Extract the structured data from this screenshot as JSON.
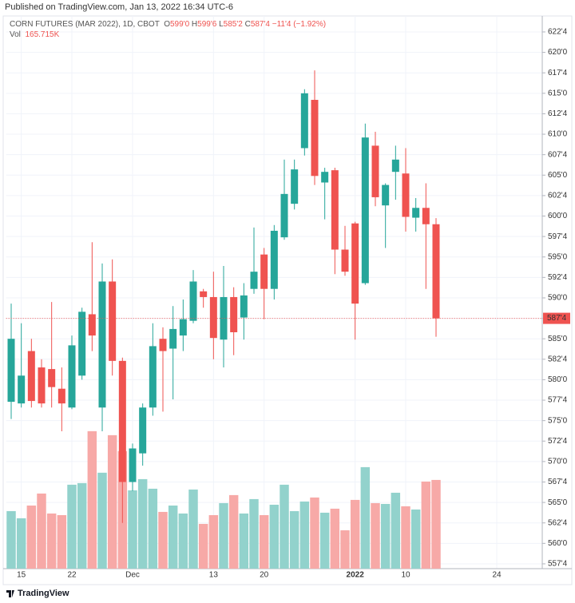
{
  "publisher": "Published on TradingView.com, Jan 13, 2022 16:34 UTC-6",
  "footer": "TradingView",
  "chart_data": {
    "type": "candlestick",
    "title": "CORN FUTURES (MAR 2022), 1D, CBOT",
    "legend": {
      "o": "O",
      "o_value": "599'0",
      "h": "H",
      "h_value": "599'6",
      "l": "L",
      "l_value": "585'2",
      "c": "C",
      "c_value": "587'4",
      "change": "−11'4 (−1.92%)",
      "vol": "Vol",
      "vol_value": "165.715K"
    },
    "up_color": "#26a69a",
    "down_color": "#ef5350",
    "up_volume_color": "#92d2cc",
    "down_volume_color": "#f7a9a7",
    "categories": [
      null,
      "15",
      null,
      null,
      null,
      null,
      "22",
      null,
      null,
      null,
      null,
      null,
      "Dec",
      null,
      null,
      null,
      null,
      null,
      null,
      null,
      "13",
      null,
      null,
      null,
      null,
      "20",
      null,
      null,
      null,
      null,
      null,
      null,
      null,
      null,
      "2022",
      null,
      null,
      null,
      null,
      "10",
      null,
      null,
      null,
      null,
      null,
      null,
      null,
      null,
      "24",
      null,
      null,
      null,
      null
    ],
    "open": [
      577.3,
      577.1,
      583.5,
      581.5,
      581.3,
      578.9,
      576.6,
      580.5,
      588.0,
      576.6,
      592.0,
      582.3,
      567.5,
      571.0,
      576.6,
      585.0,
      583.8,
      585.4,
      587.2,
      590.8,
      590.1,
      584.9,
      590.1,
      587.6,
      591.1,
      595.3,
      591.1,
      597.4,
      601.5,
      608.3,
      614.2,
      604.1,
      605.6,
      595.9,
      599.1,
      591.8,
      608.6,
      601.3,
      605.4,
      605.2,
      599.8,
      601.0,
      599.0,
      null,
      null,
      null,
      null,
      null,
      null,
      null,
      null,
      null,
      null
    ],
    "high": [
      589.3,
      586.9,
      585.0,
      582.5,
      589.5,
      581.5,
      585.4,
      588.8,
      596.8,
      594.2,
      594.7,
      582.7,
      572.2,
      577.1,
      586.9,
      586.4,
      589.0,
      589.8,
      593.4,
      591.1,
      593.2,
      593.9,
      591.3,
      591.8,
      598.6,
      596.1,
      598.9,
      606.9,
      606.9,
      615.5,
      617.8,
      605.9,
      605.9,
      598.8,
      599.3,
      611.3,
      610.3,
      604.0,
      608.6,
      608.3,
      602.2,
      604.0,
      599.75,
      null,
      null,
      null,
      null,
      null,
      null,
      null,
      null,
      null,
      null
    ],
    "low": [
      575.2,
      576.6,
      576.6,
      576.6,
      576.6,
      573.7,
      576.4,
      580.0,
      583.5,
      573.7,
      580.5,
      562.5,
      566.4,
      569.5,
      575.6,
      576.1,
      577.6,
      583.5,
      586.9,
      588.8,
      582.5,
      581.5,
      583.0,
      584.9,
      590.5,
      587.4,
      589.8,
      597.1,
      600.8,
      607.4,
      603.8,
      599.6,
      592.9,
      592.7,
      584.9,
      591.6,
      601.2,
      596.1,
      602.0,
      598.1,
      598.1,
      591.1,
      585.25,
      null,
      null,
      null,
      null,
      null,
      null,
      null,
      null,
      null,
      null
    ],
    "close": [
      585.0,
      580.5,
      577.4,
      577.1,
      579.1,
      577.1,
      584.2,
      588.3,
      585.4,
      592.0,
      582.3,
      567.5,
      571.6,
      576.6,
      584.1,
      583.5,
      586.2,
      587.4,
      592.0,
      590.1,
      585.1,
      590.1,
      585.8,
      590.3,
      593.2,
      591.1,
      598.2,
      602.7,
      605.7,
      615.0,
      604.9,
      605.4,
      595.9,
      593.2,
      589.3,
      609.6,
      602.3,
      603.8,
      606.9,
      599.9,
      601.0,
      599.0,
      587.5,
      null,
      null,
      null,
      null,
      null,
      null,
      null,
      null,
      null,
      null
    ],
    "volume": [
      107.5,
      94.1,
      117.9,
      140.3,
      103.0,
      100.0,
      156.8,
      159.8,
      256.8,
      179.2,
      249.3,
      219.5,
      146.3,
      167.2,
      149.3,
      106.0,
      117.9,
      103.0,
      147.8,
      83.6,
      100.0,
      122.4,
      137.4,
      103.0,
      129.9,
      100.0,
      119.4,
      156.8,
      107.5,
      125.4,
      132.9,
      104.5,
      112.0,
      71.7,
      128.4,
      189.6,
      122.4,
      120.9,
      141.8,
      116.5,
      110.5,
      162.7,
      165.715,
      null,
      null,
      null,
      null,
      null,
      null,
      null,
      null,
      null,
      null
    ],
    "volume_ylim": [
      0,
      270
    ],
    "ylim": [
      556.91,
      624.45
    ],
    "yticks": [
      {
        "value": 557.5,
        "label": "557'4"
      },
      {
        "value": 560,
        "label": "560'0"
      },
      {
        "value": 562.5,
        "label": "562'4"
      },
      {
        "value": 565,
        "label": "565'0"
      },
      {
        "value": 567.5,
        "label": "567'4"
      },
      {
        "value": 570,
        "label": "570'0"
      },
      {
        "value": 572.5,
        "label": "572'4"
      },
      {
        "value": 575,
        "label": "575'0"
      },
      {
        "value": 577.5,
        "label": "577'4"
      },
      {
        "value": 580,
        "label": "580'0"
      },
      {
        "value": 582.5,
        "label": "582'4"
      },
      {
        "value": 585,
        "label": "585'0"
      },
      {
        "value": 587.5,
        "label": "587'4"
      },
      {
        "value": 590,
        "label": "590'0"
      },
      {
        "value": 592.5,
        "label": "592'4"
      },
      {
        "value": 595,
        "label": "595'0"
      },
      {
        "value": 597.5,
        "label": "597'4"
      },
      {
        "value": 600,
        "label": "600'0"
      },
      {
        "value": 602.5,
        "label": "602'4"
      },
      {
        "value": 605,
        "label": "605'0"
      },
      {
        "value": 607.5,
        "label": "607'4"
      },
      {
        "value": 610,
        "label": "610'0"
      },
      {
        "value": 612.5,
        "label": "612'4"
      },
      {
        "value": 615,
        "label": "615'0"
      },
      {
        "value": 617.5,
        "label": "617'4"
      },
      {
        "value": 620,
        "label": "620'0"
      },
      {
        "value": 622.5,
        "label": "622'4"
      }
    ],
    "last_price": {
      "value": 587.5,
      "label": "587'4"
    },
    "grid": true
  }
}
